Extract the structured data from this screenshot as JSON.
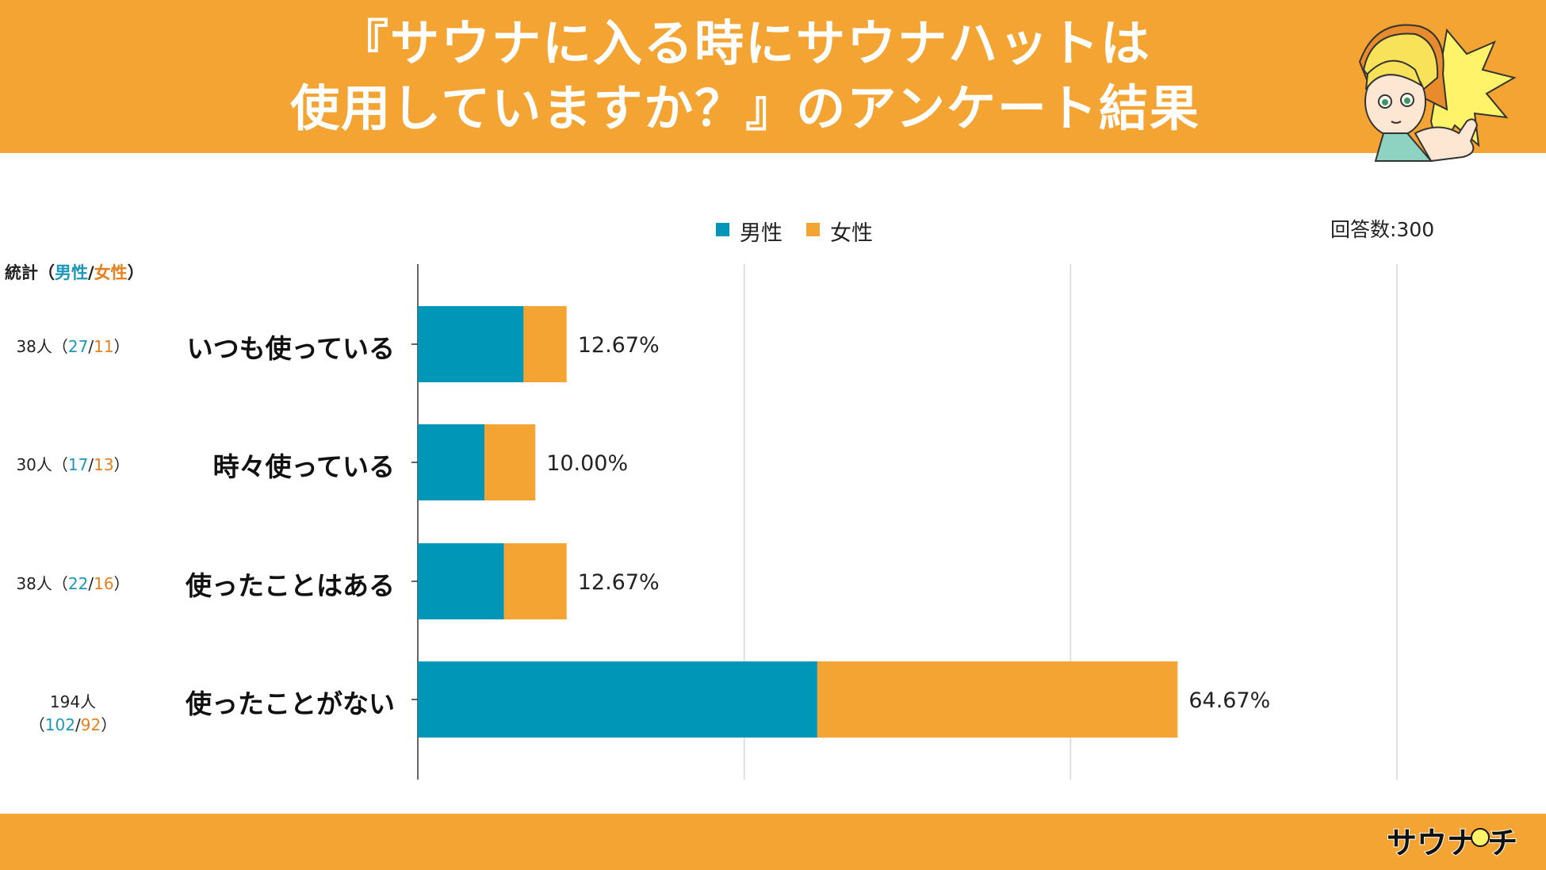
{
  "header": {
    "title_line1": "『サウナに入る時にサウナハットは",
    "title_line2": "使用していますか？』のアンケート結果"
  },
  "legend": {
    "male_label": "男性",
    "female_label": "女性"
  },
  "total_label": "回答数:300",
  "stats_header": {
    "prefix": "統計（",
    "male": "男性",
    "slash": "/",
    "female": "女性",
    "suffix": "）"
  },
  "rows": [
    {
      "label": "いつも使っている",
      "count": "38人",
      "male": "27",
      "female": "11",
      "percent": "12.67%"
    },
    {
      "label": "時々使っている",
      "count": "30人",
      "male": "17",
      "female": "13",
      "percent": "10.00%"
    },
    {
      "label": "使ったことはある",
      "count": "38人",
      "male": "22",
      "female": "16",
      "percent": "12.67%"
    },
    {
      "label": "使ったことがない",
      "count": "194人",
      "male": "102",
      "female": "92",
      "percent": "64.67%"
    }
  ],
  "colors": {
    "male": "#0096b8",
    "female": "#f4a432",
    "header": "#f4a432"
  },
  "chart_data": {
    "type": "bar",
    "orientation": "horizontal",
    "stacked": true,
    "title": "『サウナに入る時にサウナハットは使用していますか？』のアンケート結果",
    "categories": [
      "いつも使っている",
      "時々使っている",
      "使ったことはある",
      "使ったことがない"
    ],
    "series": [
      {
        "name": "男性",
        "values": [
          27,
          17,
          22,
          102
        ]
      },
      {
        "name": "女性",
        "values": [
          11,
          13,
          16,
          92
        ]
      }
    ],
    "totals": [
      38,
      30,
      38,
      194
    ],
    "data_labels": [
      "12.67%",
      "10.00%",
      "12.67%",
      "64.67%"
    ],
    "xlim": [
      0,
      250
    ],
    "grid": true,
    "legend": "top-center",
    "total_respondents": 300
  }
}
